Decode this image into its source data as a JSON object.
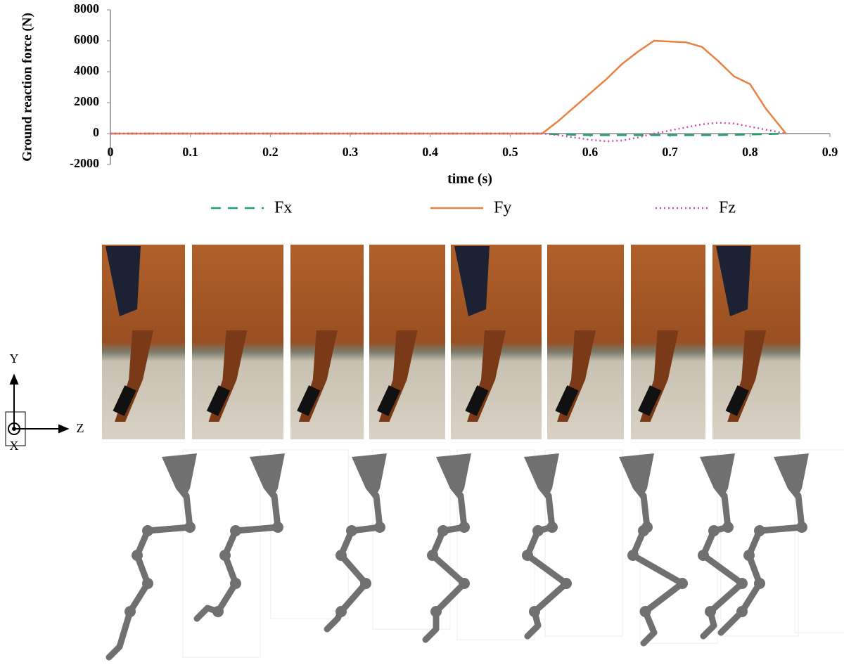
{
  "chart_data": {
    "type": "line",
    "xlabel": "time (s)",
    "ylabel": "Ground reaction force (N)",
    "x": [
      0,
      0.54,
      0.56,
      0.58,
      0.6,
      0.62,
      0.64,
      0.66,
      0.68,
      0.7,
      0.72,
      0.74,
      0.76,
      0.78,
      0.8,
      0.82,
      0.845
    ],
    "series": [
      {
        "name": "Fx",
        "color": "#1aa36a",
        "dash": "14 10",
        "values": [
          0,
          0,
          -50,
          -80,
          -100,
          -100,
          -100,
          -100,
          -100,
          -100,
          -100,
          -100,
          -100,
          -80,
          -60,
          -40,
          0
        ]
      },
      {
        "name": "Fy",
        "color": "#e8823e",
        "dash": "none",
        "values": [
          0,
          0,
          800,
          1700,
          2600,
          3500,
          4500,
          5300,
          6000,
          5950,
          5900,
          5600,
          4700,
          3700,
          3200,
          1600,
          0
        ]
      },
      {
        "name": "Fz",
        "color": "#cc4fa8",
        "dash": "2 4",
        "values": [
          0,
          0,
          -100,
          -250,
          -400,
          -500,
          -450,
          -250,
          0,
          200,
          400,
          600,
          700,
          650,
          450,
          250,
          0
        ]
      }
    ],
    "xlim": [
      0,
      0.9
    ],
    "xticks": [
      0,
      0.1,
      0.2,
      0.3,
      0.4,
      0.5,
      0.6,
      0.7,
      0.8,
      0.9
    ],
    "ylim": [
      -2000,
      8000
    ],
    "yticks": [
      -2000,
      0,
      2000,
      4000,
      6000,
      8000
    ]
  },
  "coordinate_frame": {
    "x": "X",
    "y": "Y",
    "z": "Z"
  }
}
